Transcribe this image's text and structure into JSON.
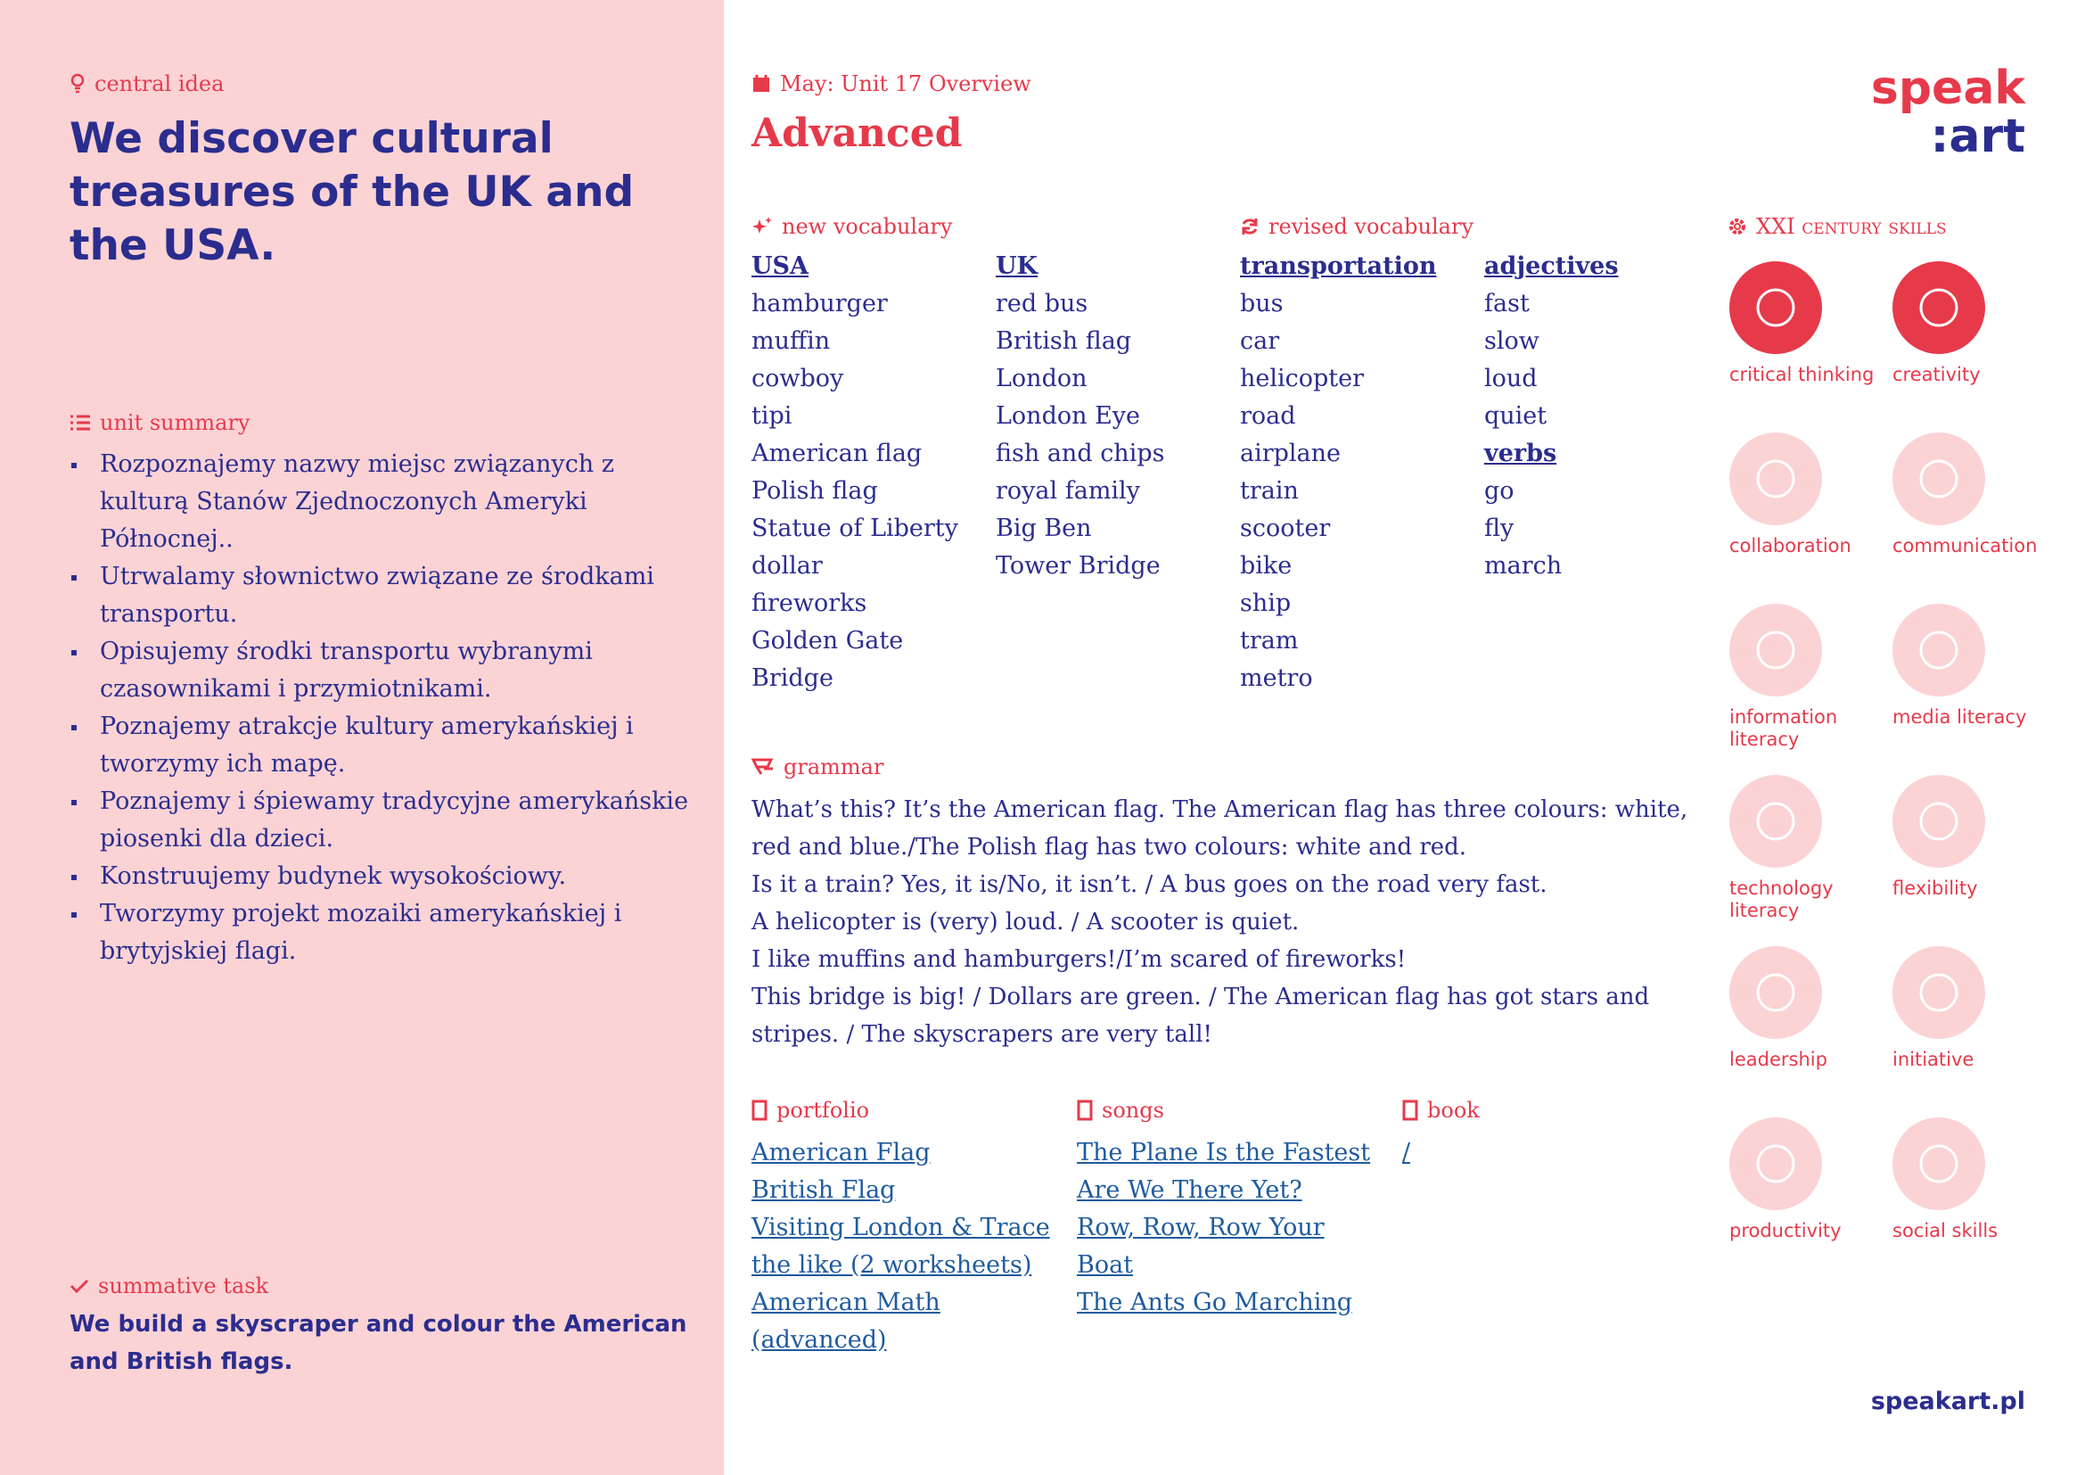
{
  "left": {
    "central_idea_label": "central idea",
    "central_idea": "We discover cultural treasures of the UK and the USA.",
    "unit_summary_label": "unit summary",
    "unit_summary": [
      "Rozpoznajemy nazwy miejsc związanych z kulturą Stanów Zjednoczonych Ameryki Północnej..",
      "Utrwalamy słownictwo związane ze środkami transportu.",
      "Opisujemy środki transportu wybranymi czasownikami i przymiotnikami.",
      "Poznajemy atrakcje kultury amerykańskiej i tworzymy ich  mapę.",
      "Poznajemy i śpiewamy tradycyjne amerykańskie piosenki dla dzieci.",
      "Konstruujemy budynek wysokościowy.",
      "Tworzymy projekt mozaiki amerykańskiej i brytyjskiej flagi."
    ],
    "summative_task_label": "summative task",
    "summative_task": "We build a skyscraper and colour the American and British flags."
  },
  "header": {
    "unit": "May: Unit 17 Overview",
    "level": "Advanced",
    "logo": [
      "speak",
      ":art"
    ]
  },
  "new_vocabulary": {
    "label": "new vocabulary",
    "columns": [
      {
        "groups": [
          {
            "heading": "USA",
            "items": [
              "hamburger",
              "muffin",
              "cowboy",
              "tipi",
              "American flag",
              "Polish flag",
              "Statue of Liberty",
              "dollar",
              "fireworks",
              "Golden Gate",
              "Bridge"
            ]
          }
        ]
      },
      {
        "groups": [
          {
            "heading": "UK",
            "items": [
              "red bus",
              "British flag",
              "London",
              "London Eye",
              "fish and chips",
              "royal family",
              "Big Ben",
              "Tower Bridge"
            ]
          }
        ]
      }
    ]
  },
  "revised_vocabulary": {
    "label": "revised vocabulary",
    "columns": [
      {
        "groups": [
          {
            "heading": "transportation",
            "items": [
              "bus",
              "car",
              "helicopter",
              "road",
              "airplane",
              "train",
              "scooter",
              "bike",
              "ship",
              "tram",
              "metro"
            ]
          }
        ]
      },
      {
        "groups": [
          {
            "heading": "adjectives",
            "items": [
              "fast",
              "slow",
              "loud",
              "quiet"
            ]
          },
          {
            "heading": "verbs",
            "items": [
              "go",
              "fly",
              "march"
            ]
          }
        ]
      }
    ]
  },
  "grammar": {
    "label": "grammar",
    "paragraphs": [
      "What’s this? It’s the American flag. The American flag has three colours: white, red and blue./The Polish flag has two colours: white and red.",
      "Is it a train? Yes, it is/No, it isn’t. / A  bus goes on the road very fast.",
      "A helicopter is (very) loud. / A scooter is quiet.",
      "I like muffins and hamburgers!/I’m scared of fireworks!",
      "This bridge is big! / Dollars are green. / The American flag has got stars and stripes. / The skyscrapers are very tall!"
    ]
  },
  "resources": [
    {
      "label": "portfolio",
      "items": [
        "American Flag",
        "British Flag",
        "Visiting London & Trace the like (2 worksheets)",
        "American Math (advanced)"
      ]
    },
    {
      "label": "songs",
      "items": [
        "The Plane Is the Fastest",
        "Are We There Yet?",
        "Row, Row, Row Your Boat",
        "The Ants Go Marching"
      ]
    },
    {
      "label": "book",
      "items": [
        "/"
      ]
    }
  ],
  "skills": {
    "label": "XXI century skills",
    "items": [
      {
        "label": "critical thinking",
        "active": true
      },
      {
        "label": "creativity",
        "active": true
      },
      {
        "label": "collaboration",
        "active": false
      },
      {
        "label": "communication",
        "active": false
      },
      {
        "label": "information literacy",
        "active": false
      },
      {
        "label": "media literacy",
        "active": false
      },
      {
        "label": "technology literacy",
        "active": false
      },
      {
        "label": "flexibility",
        "active": false
      },
      {
        "label": "leadership",
        "active": false
      },
      {
        "label": "initiative",
        "active": false
      },
      {
        "label": "productivity",
        "active": false
      },
      {
        "label": "social skills",
        "active": false
      }
    ]
  },
  "footer": {
    "url": "speakart.pl"
  }
}
